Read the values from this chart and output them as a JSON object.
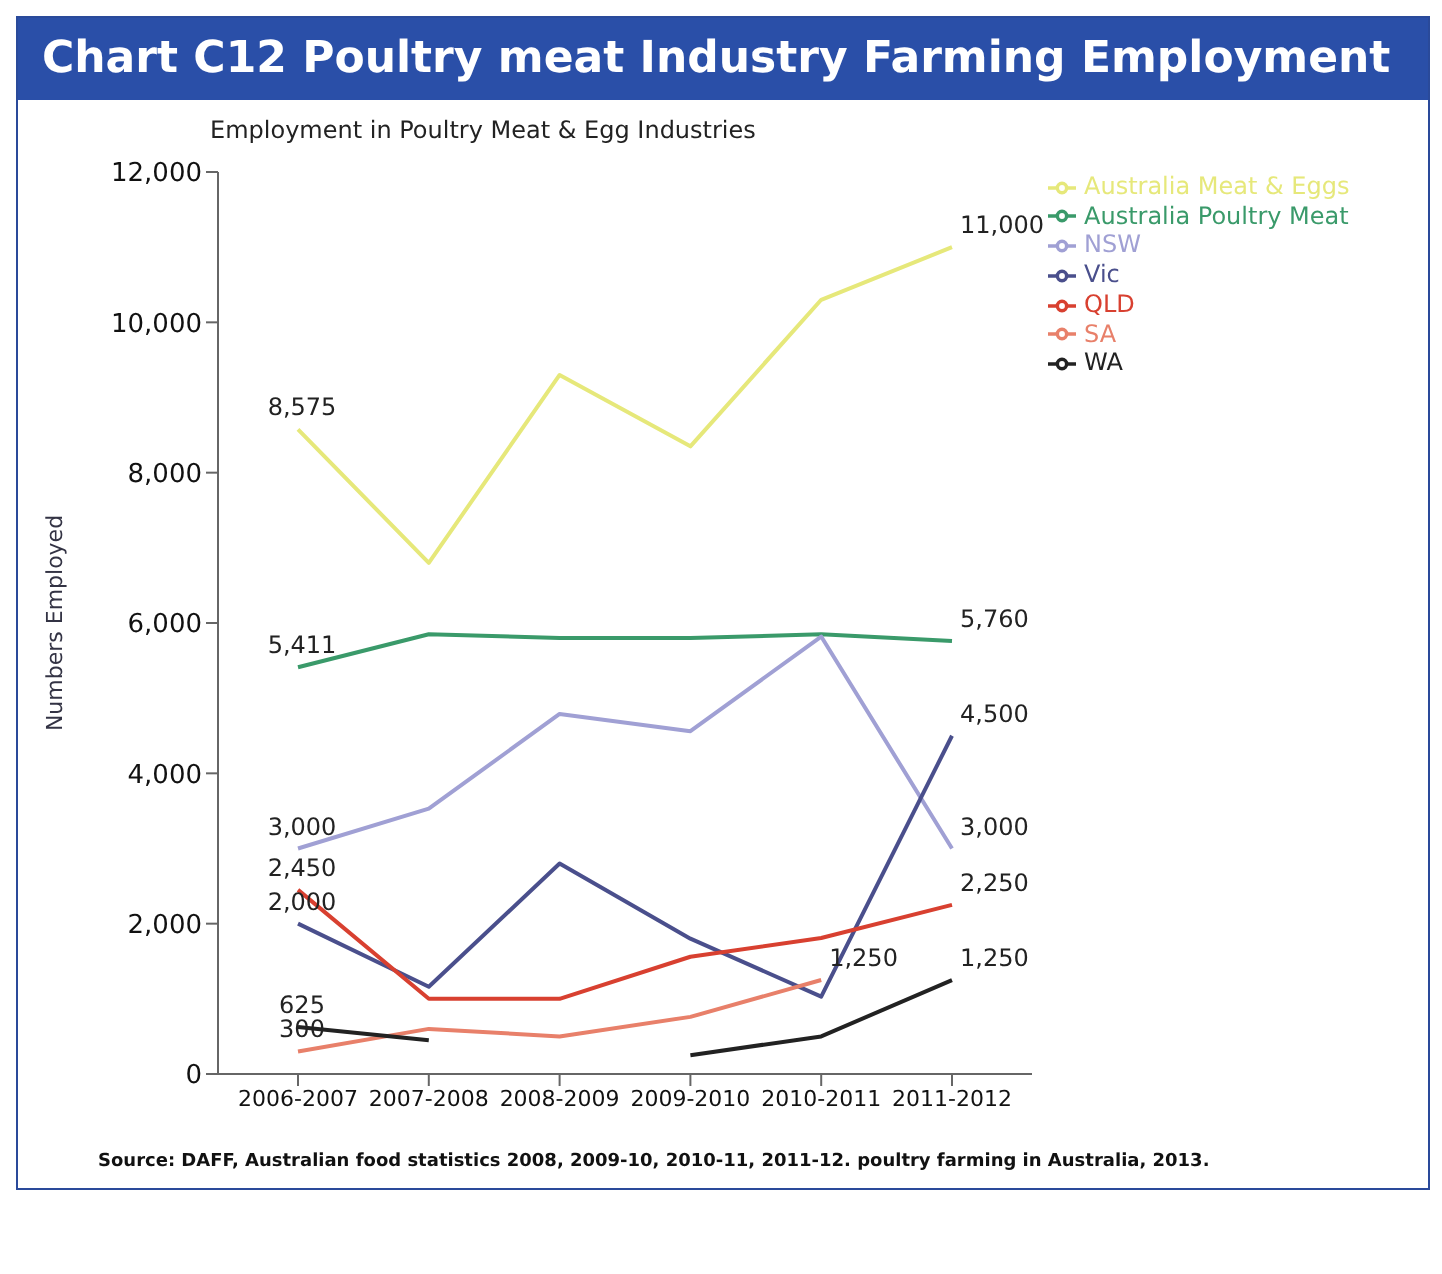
{
  "chart_data": {
    "type": "line",
    "title": "Chart C12 Poultry meat Industry Farming Employment",
    "subtitle": "Employment in Poultry Meat & Egg Industries",
    "ylabel": "Numbers Employed",
    "categories": [
      "2006-2007",
      "2007-2008",
      "2008-2009",
      "2009-2010",
      "2010-2011",
      "2011-2012"
    ],
    "series": [
      {
        "name": "Australia Meat & Eggs",
        "color": "#e6e87a",
        "values": [
          8575,
          6800,
          9300,
          8350,
          10300,
          11000
        ],
        "value_labels": [
          "8,575",
          null,
          null,
          null,
          null,
          "11,000"
        ]
      },
      {
        "name": "Australia Poultry Meat",
        "color": "#3a9a6a",
        "values": [
          5411,
          5850,
          5800,
          5800,
          5850,
          5760
        ],
        "value_labels": [
          "5,411",
          null,
          null,
          null,
          null,
          "5,760"
        ]
      },
      {
        "name": "NSW",
        "color": "#a0a0d4",
        "values": [
          3000,
          3530,
          4790,
          4560,
          5820,
          3000
        ],
        "value_labels": [
          "3,000",
          null,
          null,
          null,
          null,
          "3,000"
        ]
      },
      {
        "name": "Vic",
        "color": "#4a4f8c",
        "values": [
          2000,
          1160,
          2800,
          1800,
          1030,
          4500
        ],
        "value_labels": [
          "2,000",
          null,
          null,
          null,
          null,
          "4,500"
        ]
      },
      {
        "name": "QLD",
        "color": "#d84030",
        "values": [
          2450,
          1000,
          1000,
          1560,
          1810,
          2250
        ],
        "value_labels": [
          "2,450",
          null,
          null,
          null,
          null,
          "2,250"
        ]
      },
      {
        "name": "SA",
        "color": "#e8806a",
        "values": [
          300,
          600,
          500,
          760,
          1250,
          null
        ],
        "value_labels": [
          "300",
          null,
          null,
          null,
          "1,250",
          null
        ]
      },
      {
        "name": "WA",
        "color": "#222222",
        "values": [
          625,
          450,
          null,
          250,
          500,
          1250
        ],
        "value_labels": [
          "625",
          null,
          null,
          null,
          null,
          "1,250"
        ]
      }
    ],
    "ylim": [
      0,
      12000
    ],
    "yticks": [
      {
        "value": 0,
        "label": "0"
      },
      {
        "value": 2000,
        "label": "2,000"
      },
      {
        "value": 4000,
        "label": "4,000"
      },
      {
        "value": 6000,
        "label": "6,000"
      },
      {
        "value": 8000,
        "label": "8,000"
      },
      {
        "value": 10000,
        "label": "10,000"
      },
      {
        "value": 12000,
        "label": "12,000"
      }
    ],
    "legend": "right",
    "marker": "none",
    "line_style": "solid",
    "annotations": [
      "Source: DAFF, Australian food statistics 2008, 2009-10, 2010-11, 2011-12. poultry farming in Australia, 2013."
    ]
  }
}
